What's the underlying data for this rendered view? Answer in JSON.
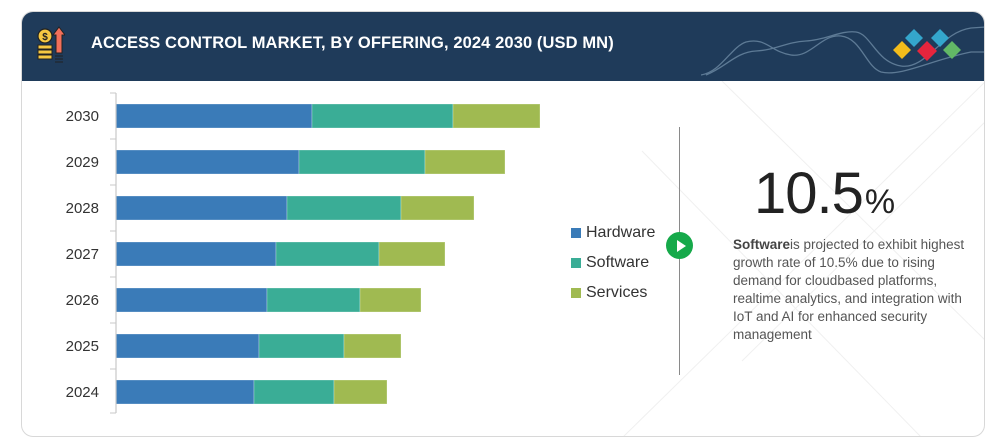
{
  "header": {
    "title": "ACCESS CONTROL MARKET, BY OFFERING, 2024 2030 (USD MN)",
    "icon": "money-growth-icon",
    "logo": "brand-diamonds-logo"
  },
  "colors": {
    "header_bg": "#1f3b5a",
    "hardware": "#3a7bb8",
    "software": "#3aad96",
    "services": "#a0ba51",
    "accent_green": "#16a94a",
    "logo_yellow": "#f2bc1b",
    "logo_blue": "#34a6cc",
    "logo_red": "#e6253d",
    "logo_green": "#62b866"
  },
  "legend": [
    {
      "label": "Hardware",
      "color": "#3a7bb8"
    },
    {
      "label": "Software",
      "color": "#3aad96"
    },
    {
      "label": "Services",
      "color": "#a0ba51"
    }
  ],
  "highlight": {
    "value": "10.5",
    "unit": "%",
    "segment": "Software",
    "text": "is projected to exhibit highest growth rate of 10.5% due to rising demand for cloudbased platforms, realtime analytics, and integration with IoT and AI for enhanced security management"
  },
  "chart_data": {
    "type": "bar",
    "orientation": "horizontal",
    "stacked": true,
    "title": "ACCESS CONTROL MARKET, BY OFFERING, 2024 2030 (USD MN)",
    "xlabel": "",
    "ylabel": "",
    "note": "No value axis shown; values are estimated relative magnitudes read from bar lengths",
    "categories": [
      "2030",
      "2029",
      "2028",
      "2027",
      "2026",
      "2025",
      "2024"
    ],
    "series": [
      {
        "name": "Hardware",
        "values": [
          196,
          183,
          171,
          160,
          151,
          143,
          138
        ]
      },
      {
        "name": "Software",
        "values": [
          141,
          126,
          114,
          103,
          93,
          85,
          80
        ]
      },
      {
        "name": "Services",
        "values": [
          87,
          80,
          73,
          66,
          61,
          57,
          53
        ]
      }
    ],
    "xlim": [
      0,
      424
    ],
    "grid": false,
    "legend_position": "right"
  }
}
